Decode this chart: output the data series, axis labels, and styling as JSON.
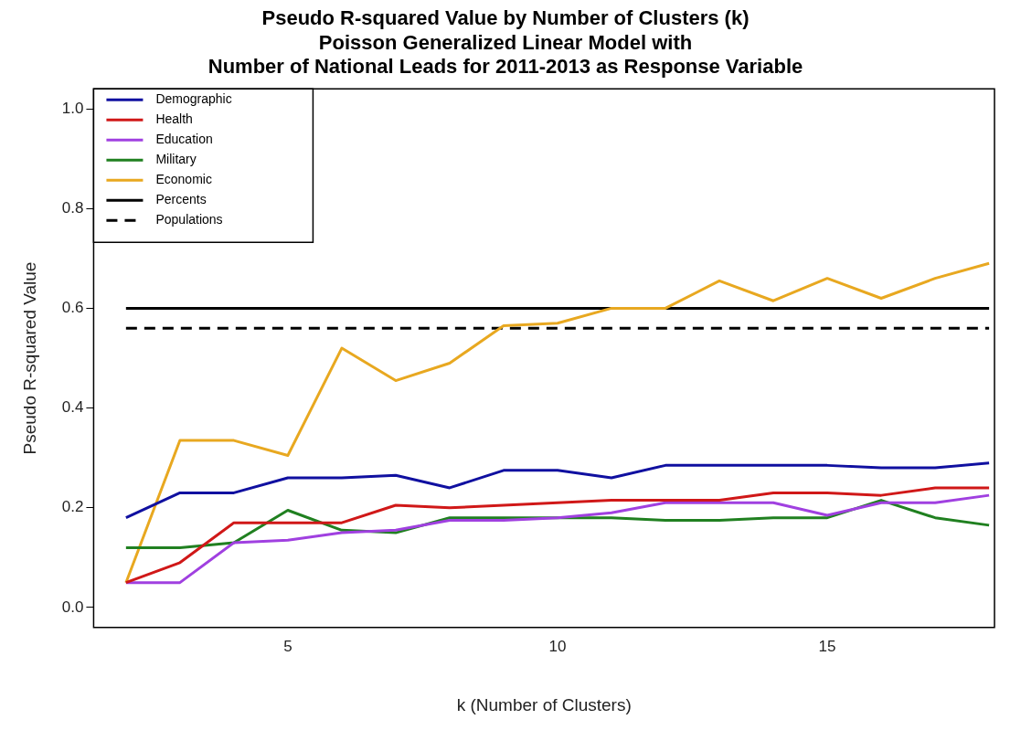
{
  "chart_data": {
    "type": "line",
    "title": [
      "Pseudo R-squared Value by Number of Clusters (k)",
      "Poisson Generalized Linear Model with",
      "Number of National Leads for 2011-2013 as Response Variable"
    ],
    "xlabel": "k (Number of Clusters)",
    "ylabel": "Pseudo R-squared Value",
    "x": [
      2,
      3,
      4,
      5,
      6,
      7,
      8,
      9,
      10,
      11,
      12,
      13,
      14,
      15,
      16,
      17,
      18
    ],
    "series": [
      {
        "name": "Demographic",
        "color": "#1010a0",
        "values": [
          0.18,
          0.23,
          0.23,
          0.26,
          0.26,
          0.265,
          0.24,
          0.275,
          0.275,
          0.26,
          0.285,
          0.285,
          0.285,
          0.285,
          0.28,
          0.28,
          0.29
        ]
      },
      {
        "name": "Health",
        "color": "#d01818",
        "values": [
          0.05,
          0.09,
          0.17,
          0.17,
          0.17,
          0.205,
          0.2,
          0.205,
          0.21,
          0.215,
          0.215,
          0.215,
          0.23,
          0.23,
          0.225,
          0.24,
          0.24
        ]
      },
      {
        "name": "Education",
        "color": "#a040e0",
        "values": [
          0.05,
          0.05,
          0.13,
          0.135,
          0.15,
          0.155,
          0.175,
          0.175,
          0.18,
          0.19,
          0.21,
          0.21,
          0.21,
          0.185,
          0.21,
          0.21,
          0.225
        ]
      },
      {
        "name": "Military",
        "color": "#208020",
        "values": [
          0.12,
          0.12,
          0.13,
          0.195,
          0.155,
          0.15,
          0.18,
          0.18,
          0.18,
          0.18,
          0.175,
          0.175,
          0.18,
          0.18,
          0.215,
          0.18,
          0.165
        ]
      },
      {
        "name": "Economic",
        "color": "#e8a820",
        "values": [
          0.05,
          0.335,
          0.335,
          0.305,
          0.52,
          0.455,
          0.49,
          0.565,
          0.57,
          0.6,
          0.6,
          0.655,
          0.615,
          0.66,
          0.62,
          0.66,
          0.69
        ]
      },
      {
        "name": "Percents",
        "color": "#000000",
        "values": [
          0.6,
          0.6,
          0.6,
          0.6,
          0.6,
          0.6,
          0.6,
          0.6,
          0.6,
          0.6,
          0.6,
          0.6,
          0.6,
          0.6,
          0.6,
          0.6,
          0.6
        ],
        "line_style": "solid"
      },
      {
        "name": "Populations",
        "color": "#000000",
        "values": [
          0.56,
          0.56,
          0.56,
          0.56,
          0.56,
          0.56,
          0.56,
          0.56,
          0.56,
          0.56,
          0.56,
          0.56,
          0.56,
          0.56,
          0.56,
          0.56,
          0.56
        ],
        "line_style": "dashed"
      }
    ],
    "xlim": [
      1.4,
      18.1
    ],
    "xticks": [
      5,
      10,
      15
    ],
    "ylim": [
      -0.04,
      1.04
    ],
    "yticks": [
      {
        "value": 0,
        "label": "0.0"
      },
      0.2,
      0.4,
      0.6,
      0.8,
      {
        "value": 1,
        "label": "1.0"
      }
    ],
    "grid": false,
    "legend": "top left",
    "marker": "none"
  }
}
